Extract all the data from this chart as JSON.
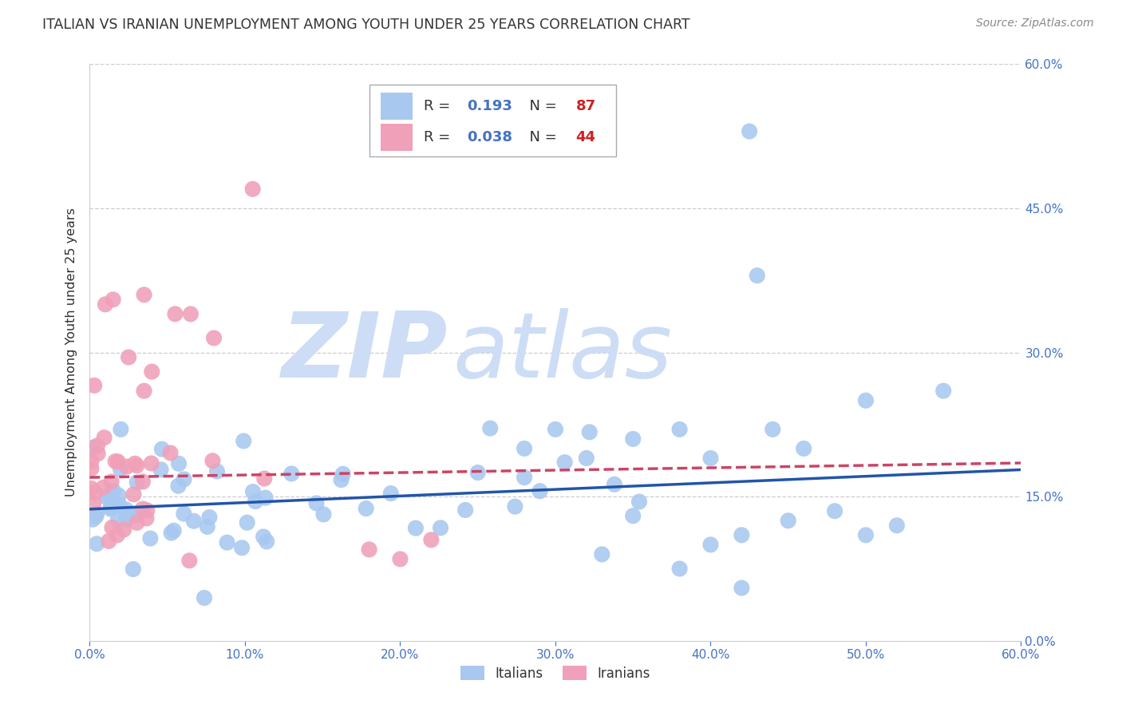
{
  "title": "ITALIAN VS IRANIAN UNEMPLOYMENT AMONG YOUTH UNDER 25 YEARS CORRELATION CHART",
  "source": "Source: ZipAtlas.com",
  "ylabel": "Unemployment Among Youth under 25 years",
  "xlim": [
    0.0,
    0.6
  ],
  "ylim": [
    0.0,
    0.6
  ],
  "yticks": [
    0.0,
    0.15,
    0.3,
    0.45,
    0.6
  ],
  "xticks": [
    0.0,
    0.1,
    0.2,
    0.3,
    0.4,
    0.5,
    0.6
  ],
  "xtick_labels": [
    "0.0%",
    "10.0%",
    "20.0%",
    "30.0%",
    "40.0%",
    "50.0%",
    "60.0%"
  ],
  "ytick_labels": [
    "0.0%",
    "15.0%",
    "30.0%",
    "45.0%",
    "60.0%"
  ],
  "italian_R": 0.193,
  "italian_N": 87,
  "iranian_R": 0.038,
  "iranian_N": 44,
  "italian_scatter_color": "#a8c8f0",
  "iranian_scatter_color": "#f0a0b8",
  "italian_line_color": "#2255aa",
  "iranian_line_color": "#cc4466",
  "watermark_zip_color": "#ccddf5",
  "watermark_atlas_color": "#ccddf5",
  "background_color": "#ffffff",
  "grid_color": "#cccccc",
  "tick_color": "#4472c4",
  "title_color": "#333333",
  "source_color": "#888888",
  "legend_R_color": "#4472c4",
  "legend_N_color": "#cc2222"
}
